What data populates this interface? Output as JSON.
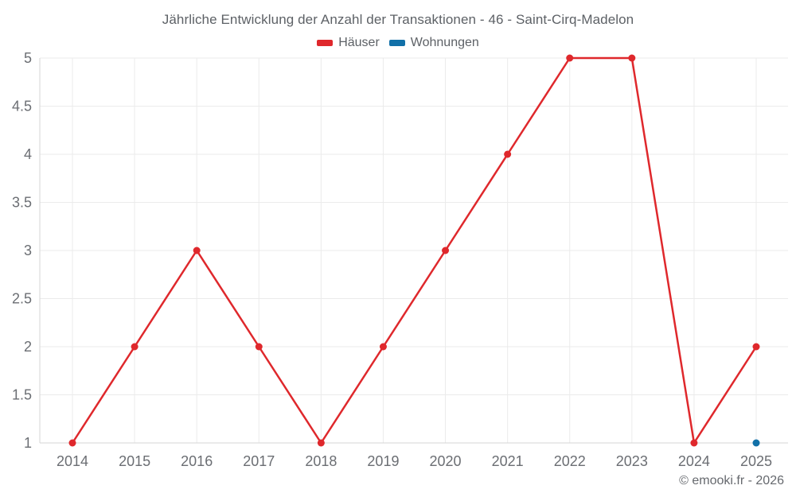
{
  "footer": {
    "copyright": "© emooki.fr - 2026"
  },
  "chart_data": {
    "type": "line",
    "title": "Jährliche Entwicklung der Anzahl der Transaktionen - 46 - Saint-Cirq-Madelon",
    "categories": [
      "2014",
      "2015",
      "2016",
      "2017",
      "2018",
      "2019",
      "2020",
      "2021",
      "2022",
      "2023",
      "2024",
      "2025"
    ],
    "series": [
      {
        "name": "Häuser",
        "color": "#df282c",
        "values": [
          1,
          2,
          3,
          2,
          1,
          2,
          3,
          4,
          5,
          5,
          1,
          2
        ]
      },
      {
        "name": "Wohnungen",
        "color": "#1170a8",
        "values": [
          null,
          null,
          null,
          null,
          null,
          null,
          null,
          null,
          null,
          null,
          null,
          1
        ]
      }
    ],
    "ylim": [
      1,
      5
    ],
    "ytick_step": 0.5,
    "xlabel": "",
    "ylabel": "",
    "grid": true,
    "legend_position": "top",
    "colors": {
      "gridline": "#ebebeb",
      "axis_line": "#d6d6d6",
      "tick_label": "#6b6e73",
      "title_text": "#5d6166"
    }
  }
}
